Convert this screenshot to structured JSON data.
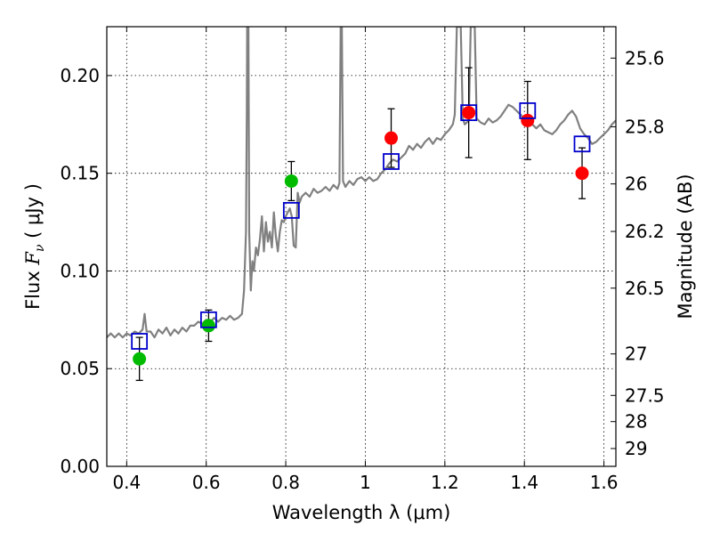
{
  "chart_data": {
    "type": "scatter",
    "xlabel": "Wavelength  λ (μm)",
    "ylabel_left": {
      "prefix": "Flux  ",
      "symbol": "F",
      "subscript": "ν",
      "suffix": "  ( μJy )"
    },
    "ylabel_right": "Magnitude (AB)",
    "xlim": [
      0.35,
      1.63
    ],
    "ylim": [
      0.0,
      0.225
    ],
    "grid": true,
    "x_ticks": [
      {
        "value": 0.4,
        "label": "0.4"
      },
      {
        "value": 0.6,
        "label": "0.6"
      },
      {
        "value": 0.8,
        "label": "0.8"
      },
      {
        "value": 1.0,
        "label": "1"
      },
      {
        "value": 1.2,
        "label": "1.2"
      },
      {
        "value": 1.4,
        "label": "1.4"
      },
      {
        "value": 1.6,
        "label": "1.6"
      }
    ],
    "y_ticks": [
      {
        "value": 0.0,
        "label": "0.00"
      },
      {
        "value": 0.05,
        "label": "0.05"
      },
      {
        "value": 0.1,
        "label": "0.10"
      },
      {
        "value": 0.15,
        "label": "0.15"
      },
      {
        "value": 0.2,
        "label": "0.20"
      }
    ],
    "right_ticks": [
      {
        "mag": 25.6,
        "label": "25.6"
      },
      {
        "mag": 25.8,
        "label": "25.8"
      },
      {
        "mag": 26.0,
        "label": "26"
      },
      {
        "mag": 26.2,
        "label": "26.2"
      },
      {
        "mag": 26.5,
        "label": "26.5"
      },
      {
        "mag": 27.0,
        "label": "27"
      },
      {
        "mag": 27.5,
        "label": "27.5"
      },
      {
        "mag": 28.0,
        "label": "28"
      },
      {
        "mag": 29.0,
        "label": "29"
      }
    ],
    "model_spectrum": {
      "color": "#808080",
      "points": [
        [
          0.35,
          0.066
        ],
        [
          0.36,
          0.068
        ],
        [
          0.37,
          0.066
        ],
        [
          0.38,
          0.068
        ],
        [
          0.39,
          0.066
        ],
        [
          0.4,
          0.068
        ],
        [
          0.41,
          0.067
        ],
        [
          0.42,
          0.069
        ],
        [
          0.43,
          0.068
        ],
        [
          0.44,
          0.07
        ],
        [
          0.445,
          0.078
        ],
        [
          0.45,
          0.069
        ],
        [
          0.46,
          0.069
        ],
        [
          0.47,
          0.066
        ],
        [
          0.48,
          0.07
        ],
        [
          0.49,
          0.068
        ],
        [
          0.5,
          0.071
        ],
        [
          0.51,
          0.067
        ],
        [
          0.52,
          0.07
        ],
        [
          0.53,
          0.068
        ],
        [
          0.54,
          0.071
        ],
        [
          0.55,
          0.069
        ],
        [
          0.56,
          0.072
        ],
        [
          0.57,
          0.072
        ],
        [
          0.58,
          0.074
        ],
        [
          0.59,
          0.073
        ],
        [
          0.6,
          0.075
        ],
        [
          0.61,
          0.074
        ],
        [
          0.62,
          0.076
        ],
        [
          0.63,
          0.074
        ],
        [
          0.64,
          0.076
        ],
        [
          0.65,
          0.075
        ],
        [
          0.66,
          0.077
        ],
        [
          0.67,
          0.075
        ],
        [
          0.68,
          0.076
        ],
        [
          0.69,
          0.078
        ],
        [
          0.695,
          0.09
        ],
        [
          0.7,
          0.12
        ],
        [
          0.702,
          0.18
        ],
        [
          0.703,
          0.225
        ],
        [
          0.706,
          0.225
        ],
        [
          0.708,
          0.12
        ],
        [
          0.712,
          0.09
        ],
        [
          0.716,
          0.105
        ],
        [
          0.72,
          0.1
        ],
        [
          0.725,
          0.112
        ],
        [
          0.73,
          0.108
        ],
        [
          0.735,
          0.116
        ],
        [
          0.74,
          0.128
        ],
        [
          0.745,
          0.11
        ],
        [
          0.75,
          0.125
        ],
        [
          0.755,
          0.115
        ],
        [
          0.76,
          0.12
        ],
        [
          0.765,
          0.112
        ],
        [
          0.77,
          0.13
        ],
        [
          0.775,
          0.118
        ],
        [
          0.78,
          0.11
        ],
        [
          0.785,
          0.12
        ],
        [
          0.79,
          0.126
        ],
        [
          0.795,
          0.125
        ],
        [
          0.8,
          0.128
        ],
        [
          0.805,
          0.13
        ],
        [
          0.81,
          0.132
        ],
        [
          0.815,
          0.128
        ],
        [
          0.82,
          0.113
        ],
        [
          0.825,
          0.112
        ],
        [
          0.83,
          0.14
        ],
        [
          0.835,
          0.135
        ],
        [
          0.84,
          0.138
        ],
        [
          0.85,
          0.14
        ],
        [
          0.86,
          0.138
        ],
        [
          0.87,
          0.142
        ],
        [
          0.88,
          0.14
        ],
        [
          0.89,
          0.141
        ],
        [
          0.9,
          0.143
        ],
        [
          0.91,
          0.141
        ],
        [
          0.92,
          0.144
        ],
        [
          0.93,
          0.142
        ],
        [
          0.935,
          0.145
        ],
        [
          0.938,
          0.225
        ],
        [
          0.941,
          0.225
        ],
        [
          0.944,
          0.146
        ],
        [
          0.95,
          0.143
        ],
        [
          0.96,
          0.146
        ],
        [
          0.97,
          0.144
        ],
        [
          0.98,
          0.147
        ],
        [
          0.99,
          0.148
        ],
        [
          1.0,
          0.146
        ],
        [
          1.01,
          0.148
        ],
        [
          1.02,
          0.146
        ],
        [
          1.03,
          0.147
        ],
        [
          1.04,
          0.15
        ],
        [
          1.05,
          0.152
        ],
        [
          1.06,
          0.155
        ],
        [
          1.07,
          0.157
        ],
        [
          1.08,
          0.156
        ],
        [
          1.09,
          0.158
        ],
        [
          1.1,
          0.16
        ],
        [
          1.11,
          0.164
        ],
        [
          1.12,
          0.162
        ],
        [
          1.13,
          0.165
        ],
        [
          1.14,
          0.163
        ],
        [
          1.15,
          0.166
        ],
        [
          1.16,
          0.168
        ],
        [
          1.17,
          0.165
        ],
        [
          1.18,
          0.168
        ],
        [
          1.19,
          0.167
        ],
        [
          1.2,
          0.17
        ],
        [
          1.21,
          0.172
        ],
        [
          1.22,
          0.175
        ],
        [
          1.225,
          0.18
        ],
        [
          1.23,
          0.225
        ],
        [
          1.24,
          0.225
        ],
        [
          1.245,
          0.178
        ],
        [
          1.25,
          0.175
        ],
        [
          1.26,
          0.177
        ],
        [
          1.265,
          0.225
        ],
        [
          1.275,
          0.225
        ],
        [
          1.28,
          0.178
        ],
        [
          1.29,
          0.176
        ],
        [
          1.3,
          0.175
        ],
        [
          1.31,
          0.178
        ],
        [
          1.32,
          0.176
        ],
        [
          1.33,
          0.177
        ],
        [
          1.34,
          0.179
        ],
        [
          1.35,
          0.182
        ],
        [
          1.36,
          0.185
        ],
        [
          1.37,
          0.184
        ],
        [
          1.38,
          0.182
        ],
        [
          1.39,
          0.18
        ],
        [
          1.4,
          0.178
        ],
        [
          1.41,
          0.177
        ],
        [
          1.42,
          0.175
        ],
        [
          1.43,
          0.173
        ],
        [
          1.44,
          0.175
        ],
        [
          1.45,
          0.172
        ],
        [
          1.46,
          0.171
        ],
        [
          1.47,
          0.17
        ],
        [
          1.48,
          0.172
        ],
        [
          1.49,
          0.175
        ],
        [
          1.5,
          0.177
        ],
        [
          1.51,
          0.18
        ],
        [
          1.52,
          0.182
        ],
        [
          1.53,
          0.179
        ],
        [
          1.54,
          0.173
        ],
        [
          1.55,
          0.17
        ],
        [
          1.56,
          0.168
        ],
        [
          1.57,
          0.165
        ],
        [
          1.58,
          0.166
        ],
        [
          1.59,
          0.168
        ],
        [
          1.6,
          0.17
        ],
        [
          1.61,
          0.172
        ],
        [
          1.62,
          0.175
        ],
        [
          1.63,
          0.177
        ]
      ]
    },
    "series": [
      {
        "marker": "circle",
        "color": "#00bb00",
        "points": [
          {
            "x": 0.432,
            "y": 0.055,
            "err": 0.011
          },
          {
            "x": 0.606,
            "y": 0.072,
            "err": 0.008
          },
          {
            "x": 0.814,
            "y": 0.146,
            "err": 0.01
          }
        ]
      },
      {
        "marker": "circle",
        "color": "#ff0000",
        "points": [
          {
            "x": 1.065,
            "y": 0.168,
            "err": 0.015
          },
          {
            "x": 1.26,
            "y": 0.181,
            "err": 0.023
          },
          {
            "x": 1.408,
            "y": 0.177,
            "err": 0.02
          },
          {
            "x": 1.545,
            "y": 0.15,
            "err": 0.013
          }
        ]
      },
      {
        "marker": "open-square",
        "color": "#0000cc",
        "points": [
          {
            "x": 0.432,
            "y": 0.064
          },
          {
            "x": 0.606,
            "y": 0.075
          },
          {
            "x": 0.814,
            "y": 0.131
          },
          {
            "x": 1.065,
            "y": 0.156
          },
          {
            "x": 1.26,
            "y": 0.181
          },
          {
            "x": 1.408,
            "y": 0.182
          },
          {
            "x": 1.545,
            "y": 0.165
          }
        ]
      }
    ]
  }
}
